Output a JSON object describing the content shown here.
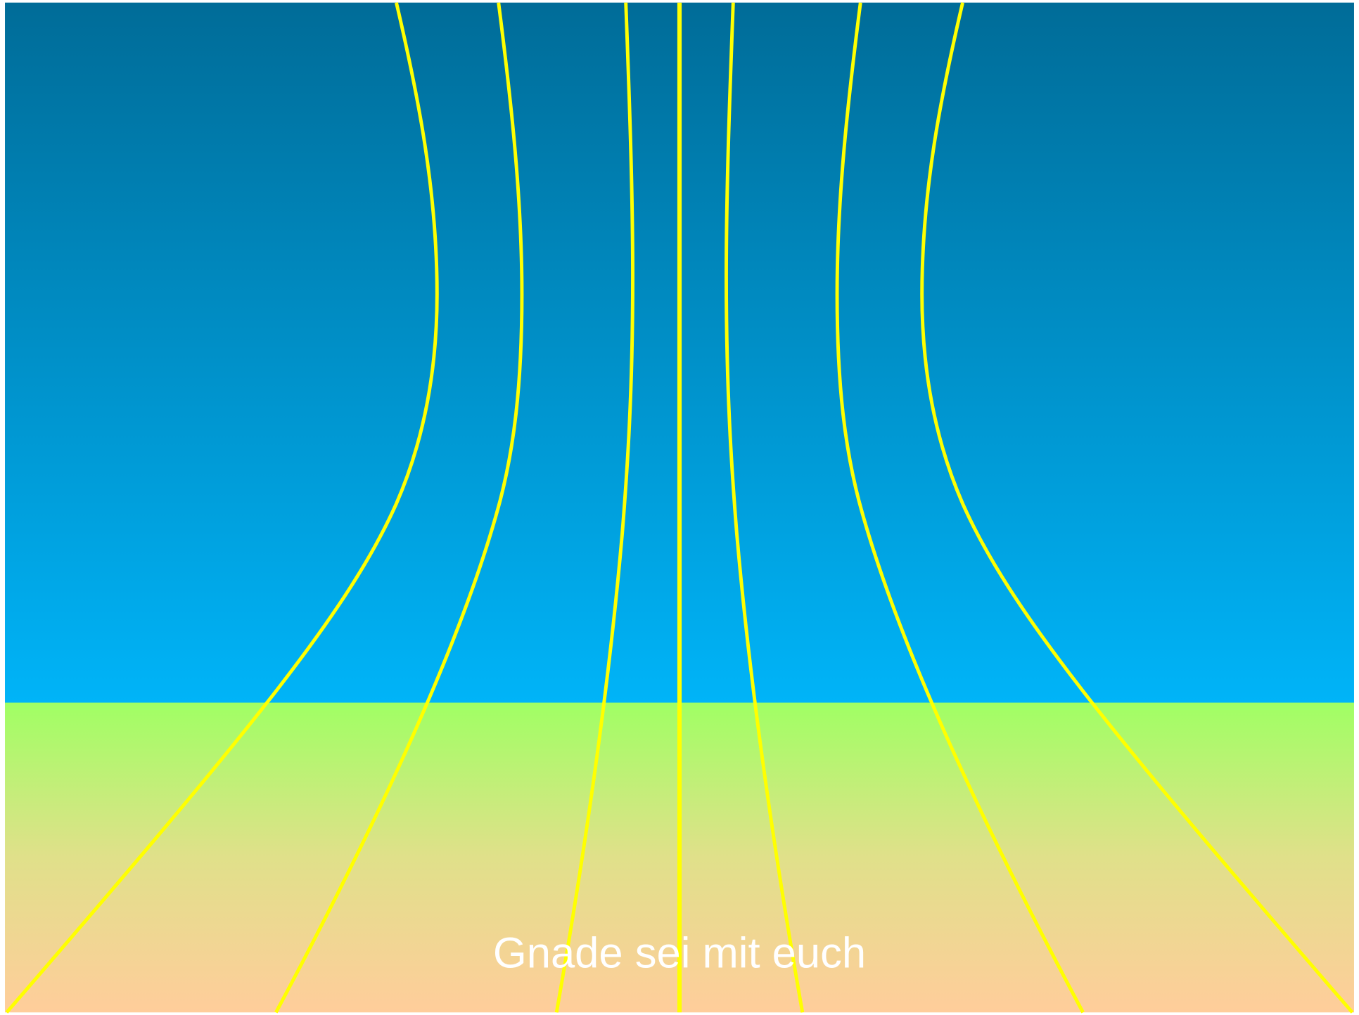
{
  "caption": "Gnade sei mit euch"
}
